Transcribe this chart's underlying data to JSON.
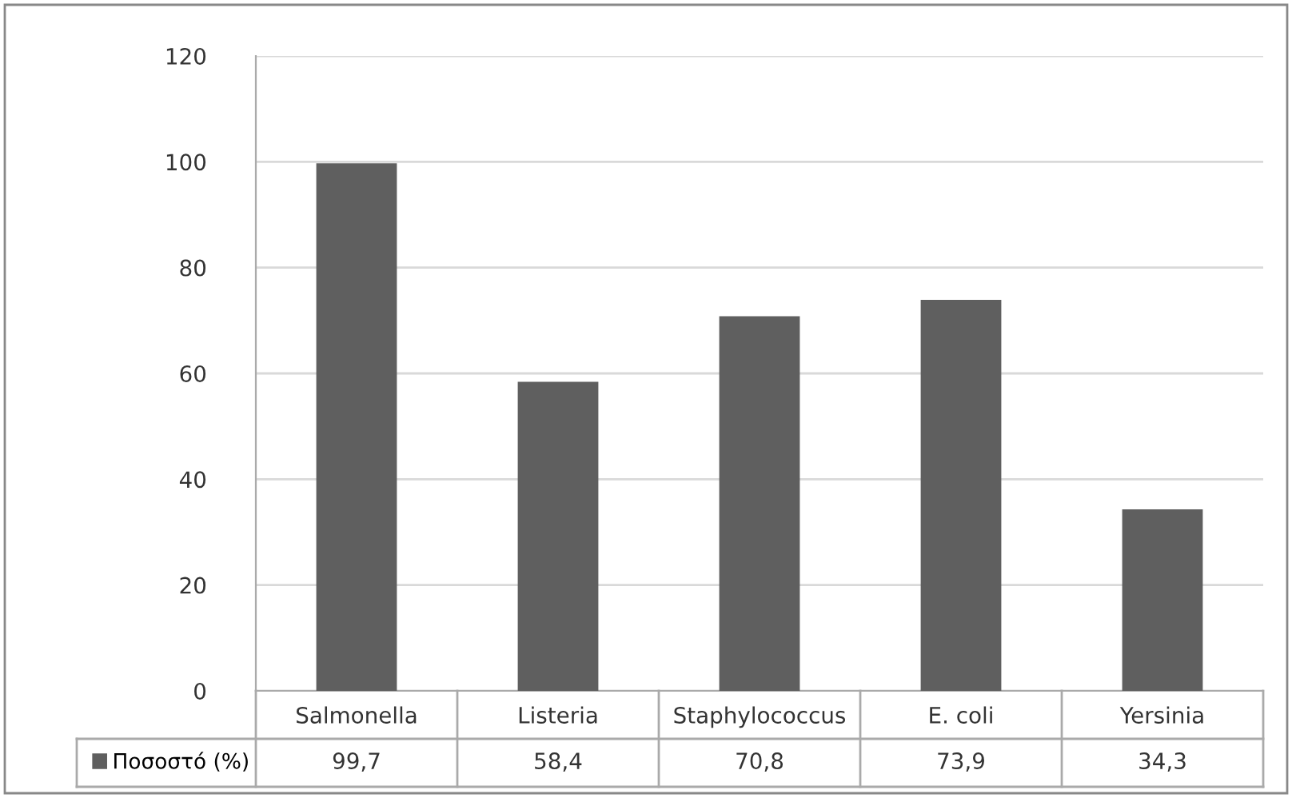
{
  "chart_data": {
    "type": "bar",
    "categories": [
      "Salmonella",
      "Listeria",
      "Staphylococcus",
      "E. coli",
      "Yersinia"
    ],
    "series": [
      {
        "name": "Ποσοστό (%)",
        "color": "#5f5f5f",
        "values": [
          99.7,
          58.4,
          70.8,
          73.9,
          34.3
        ],
        "value_labels": [
          "99,7",
          "58,4",
          "70,8",
          "73,9",
          "34,3"
        ]
      }
    ],
    "ylim": [
      0,
      120
    ],
    "yticks": [
      0,
      20,
      40,
      60,
      80,
      100,
      120
    ],
    "grid": "y",
    "legend": "bottom left"
  }
}
